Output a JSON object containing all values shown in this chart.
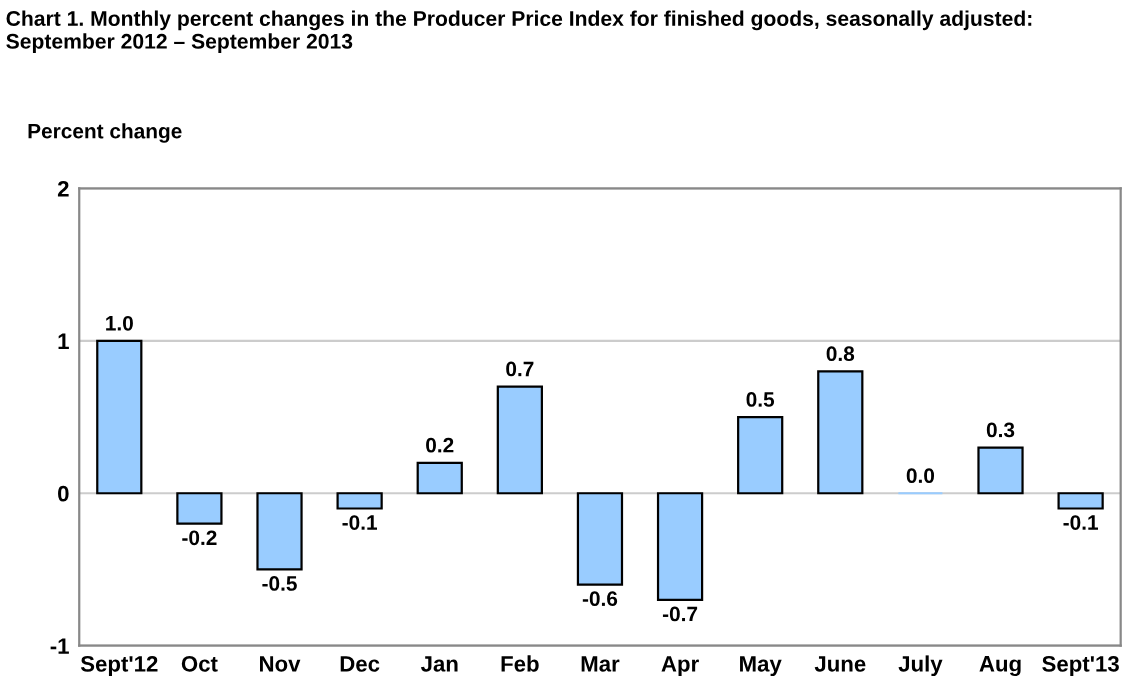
{
  "chart_data": {
    "type": "bar",
    "title": "Chart 1. Monthly percent changes in the Producer Price Index for finished goods, seasonally adjusted:\nSeptember 2012 – September 2013",
    "ylabel": "Percent change",
    "categories": [
      "Sept'12",
      "Oct",
      "Nov",
      "Dec",
      "Jan",
      "Feb",
      "Mar",
      "Apr",
      "May",
      "June",
      "July",
      "Aug",
      "Sept'13"
    ],
    "values": [
      1.0,
      -0.2,
      -0.5,
      -0.1,
      0.2,
      0.7,
      -0.6,
      -0.7,
      0.5,
      0.8,
      0.0,
      0.3,
      -0.1
    ],
    "value_labels": [
      "1.0",
      "-0.2",
      "-0.5",
      "-0.1",
      "0.2",
      "0.7",
      "-0.6",
      "-0.7",
      "0.5",
      "0.8",
      "0.0",
      "0.3",
      "-0.1"
    ],
    "color": "#99ccff",
    "ylim": [
      -1,
      2
    ],
    "yticks": [
      -1,
      0,
      1,
      2
    ],
    "grid": "y",
    "legend": false
  }
}
